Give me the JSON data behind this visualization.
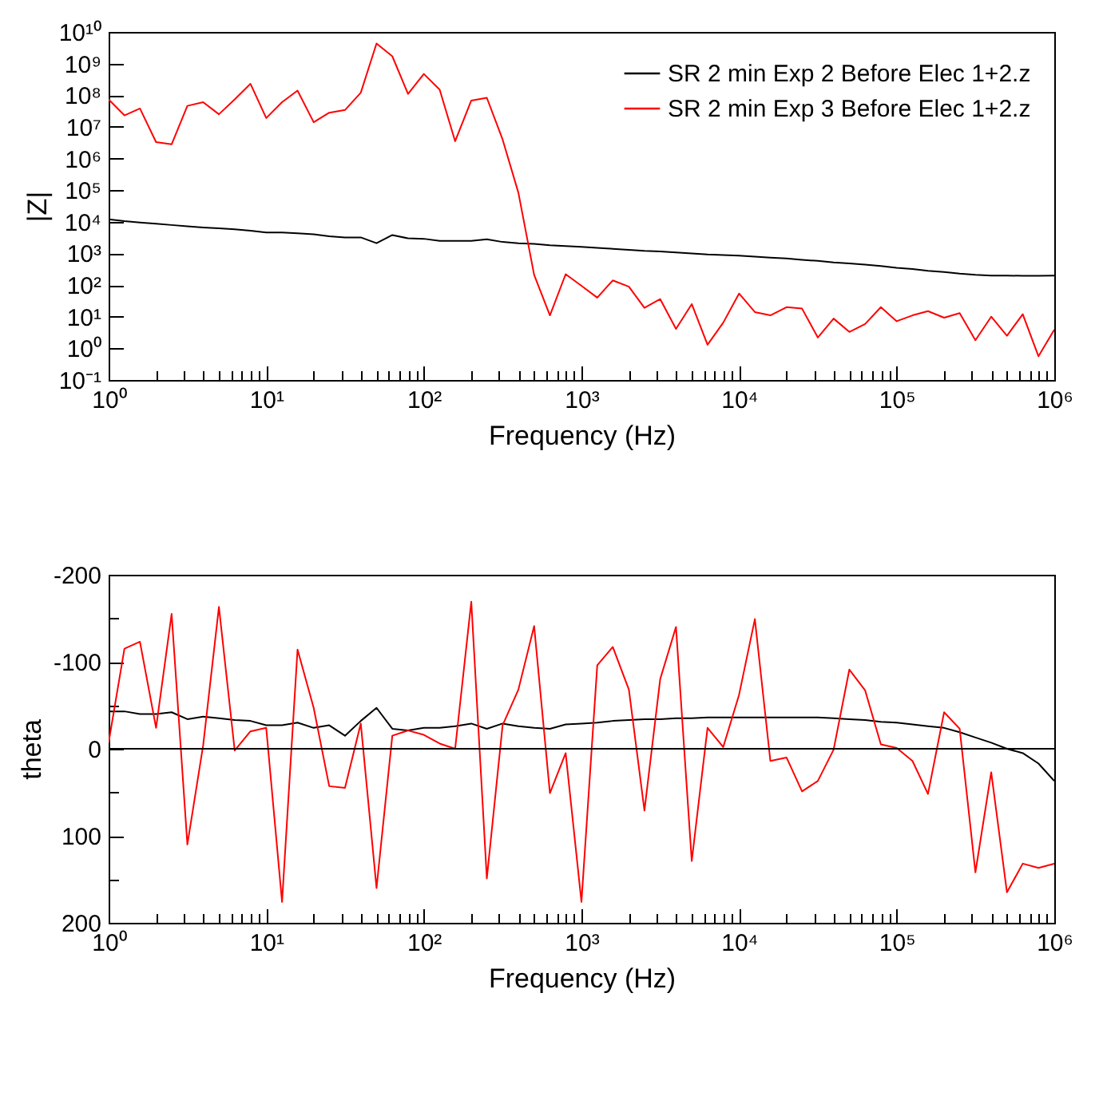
{
  "chart_data": [
    {
      "type": "line",
      "xlabel": "Frequency (Hz)",
      "ylabel": "|Z|",
      "log": "xy",
      "legend": "top right",
      "x": [
        1,
        1.26,
        1.58,
        2,
        2.51,
        3.16,
        3.98,
        5.01,
        6.31,
        7.94,
        10,
        12.6,
        15.8,
        20,
        25.1,
        31.6,
        39.8,
        50.1,
        63.1,
        79.4,
        100,
        126,
        158,
        200,
        251,
        316,
        398,
        501,
        631,
        794,
        1000,
        1260,
        1580,
        2000,
        2510,
        3160,
        3980,
        5010,
        6310,
        7940,
        10000,
        12600,
        15800,
        20000,
        25100,
        31600,
        39800,
        50100,
        63100,
        79400,
        100000,
        126000,
        158000,
        200000,
        251000,
        316000,
        398000,
        501000,
        631000,
        794000,
        1000000
      ],
      "xlim": [
        1,
        1000000
      ],
      "xticks": [
        {
          "value": 1,
          "label": "10⁰"
        },
        {
          "value": 2,
          "label": null
        },
        {
          "value": 3,
          "label": null
        },
        {
          "value": 4,
          "label": null
        },
        {
          "value": 5,
          "label": null
        },
        {
          "value": 6,
          "label": null
        },
        {
          "value": 7,
          "label": null
        },
        {
          "value": 8,
          "label": null
        },
        {
          "value": 9,
          "label": null
        },
        {
          "value": 10,
          "label": "10¹"
        },
        {
          "value": 20,
          "label": null
        },
        {
          "value": 30,
          "label": null
        },
        {
          "value": 40,
          "label": null
        },
        {
          "value": 50,
          "label": null
        },
        {
          "value": 60,
          "label": null
        },
        {
          "value": 70,
          "label": null
        },
        {
          "value": 80,
          "label": null
        },
        {
          "value": 90,
          "label": null
        },
        {
          "value": 100,
          "label": "10²"
        },
        {
          "value": 200,
          "label": null
        },
        {
          "value": 300,
          "label": null
        },
        {
          "value": 400,
          "label": null
        },
        {
          "value": 500,
          "label": null
        },
        {
          "value": 600,
          "label": null
        },
        {
          "value": 700,
          "label": null
        },
        {
          "value": 800,
          "label": null
        },
        {
          "value": 900,
          "label": null
        },
        {
          "value": 1000,
          "label": "10³"
        },
        {
          "value": 2000,
          "label": null
        },
        {
          "value": 3000,
          "label": null
        },
        {
          "value": 4000,
          "label": null
        },
        {
          "value": 5000,
          "label": null
        },
        {
          "value": 6000,
          "label": null
        },
        {
          "value": 7000,
          "label": null
        },
        {
          "value": 8000,
          "label": null
        },
        {
          "value": 9000,
          "label": null
        },
        {
          "value": 10000,
          "label": "10⁴"
        },
        {
          "value": 20000,
          "label": null
        },
        {
          "value": 30000,
          "label": null
        },
        {
          "value": 40000,
          "label": null
        },
        {
          "value": 50000,
          "label": null
        },
        {
          "value": 60000,
          "label": null
        },
        {
          "value": 70000,
          "label": null
        },
        {
          "value": 80000,
          "label": null
        },
        {
          "value": 90000,
          "label": null
        },
        {
          "value": 100000,
          "label": "10⁵"
        },
        {
          "value": 200000,
          "label": null
        },
        {
          "value": 300000,
          "label": null
        },
        {
          "value": 400000,
          "label": null
        },
        {
          "value": 500000,
          "label": null
        },
        {
          "value": 600000,
          "label": null
        },
        {
          "value": 700000,
          "label": null
        },
        {
          "value": 800000,
          "label": null
        },
        {
          "value": 900000,
          "label": null
        },
        {
          "value": 1000000,
          "label": "10⁶"
        }
      ],
      "ylim": [
        0.1,
        10000000000
      ],
      "yticks": [
        {
          "value": 0.1,
          "label": "10⁻¹"
        },
        {
          "value": 1,
          "label": "10⁰"
        },
        {
          "value": 10,
          "label": "10¹"
        },
        {
          "value": 100,
          "label": "10²"
        },
        {
          "value": 1000,
          "label": "10³"
        },
        {
          "value": 10000,
          "label": "10⁴"
        },
        {
          "value": 100000,
          "label": "10⁵"
        },
        {
          "value": 1000000,
          "label": "10⁶"
        },
        {
          "value": 10000000,
          "label": "10⁷"
        },
        {
          "value": 100000000,
          "label": "10⁸"
        },
        {
          "value": 1000000000,
          "label": "10⁹"
        },
        {
          "value": 10000000000,
          "label": "10¹⁰"
        }
      ],
      "series": [
        {
          "name": "SR 2 min Exp 2 Before Elec 1+2.z",
          "color": "#000000",
          "values": [
            12000,
            10500,
            9500,
            8700,
            7900,
            7200,
            6600,
            6200,
            5800,
            5200,
            4600,
            4600,
            4300,
            4000,
            3500,
            3200,
            3200,
            2100,
            3800,
            3000,
            2900,
            2500,
            2500,
            2500,
            2800,
            2300,
            2100,
            2000,
            1800,
            1700,
            1600,
            1500,
            1400,
            1300,
            1200,
            1150,
            1070,
            1000,
            930,
            890,
            850,
            790,
            740,
            690,
            630,
            580,
            520,
            480,
            440,
            400,
            350,
            320,
            280,
            260,
            230,
            210,
            200,
            200,
            195,
            195,
            200
          ]
        },
        {
          "name": "SR 2 min Exp 3 Before Elec 1+2.z",
          "color": "#ff0000",
          "values": [
            74000000,
            23000000,
            38000000,
            3300000,
            2800000,
            46000000,
            60000000,
            25000000,
            74000000,
            230000000,
            19000000,
            60000000,
            140000000,
            14000000,
            28000000,
            34000000,
            120000000,
            4300000000,
            1700000000,
            110000000,
            470000000,
            150000000,
            3500000,
            68000000,
            83000000,
            4000000,
            83000,
            210,
            11,
            220,
            95,
            40,
            140,
            89,
            19,
            36,
            4.1,
            25,
            1.3,
            6.5,
            54,
            14,
            11,
            20,
            18,
            2.2,
            8.7,
            3.3,
            5.9,
            20,
            7.2,
            11,
            15,
            9.3,
            13,
            1.8,
            10,
            2.5,
            12,
            0.56,
            3.9
          ]
        }
      ]
    },
    {
      "type": "line",
      "xlabel": "Frequency (Hz)",
      "ylabel": "theta",
      "log": "x",
      "x": [
        1,
        1.26,
        1.58,
        2,
        2.51,
        3.16,
        3.98,
        5.01,
        6.31,
        7.94,
        10,
        12.6,
        15.8,
        20,
        25.1,
        31.6,
        39.8,
        50.1,
        63.1,
        79.4,
        100,
        126,
        158,
        200,
        251,
        316,
        398,
        501,
        631,
        794,
        1000,
        1260,
        1580,
        2000,
        2510,
        3160,
        3980,
        5010,
        6310,
        7940,
        10000,
        12600,
        15800,
        20000,
        25100,
        31600,
        39800,
        50100,
        63100,
        79400,
        100000,
        126000,
        158000,
        200000,
        251000,
        316000,
        398000,
        501000,
        631000,
        794000,
        1000000
      ],
      "xlim": [
        1,
        1000000
      ],
      "xticks": [
        {
          "value": 1,
          "label": "10⁰"
        },
        {
          "value": 2,
          "label": null
        },
        {
          "value": 3,
          "label": null
        },
        {
          "value": 4,
          "label": null
        },
        {
          "value": 5,
          "label": null
        },
        {
          "value": 6,
          "label": null
        },
        {
          "value": 7,
          "label": null
        },
        {
          "value": 8,
          "label": null
        },
        {
          "value": 9,
          "label": null
        },
        {
          "value": 10,
          "label": "10¹"
        },
        {
          "value": 20,
          "label": null
        },
        {
          "value": 30,
          "label": null
        },
        {
          "value": 40,
          "label": null
        },
        {
          "value": 50,
          "label": null
        },
        {
          "value": 60,
          "label": null
        },
        {
          "value": 70,
          "label": null
        },
        {
          "value": 80,
          "label": null
        },
        {
          "value": 90,
          "label": null
        },
        {
          "value": 100,
          "label": "10²"
        },
        {
          "value": 200,
          "label": null
        },
        {
          "value": 300,
          "label": null
        },
        {
          "value": 400,
          "label": null
        },
        {
          "value": 500,
          "label": null
        },
        {
          "value": 600,
          "label": null
        },
        {
          "value": 700,
          "label": null
        },
        {
          "value": 800,
          "label": null
        },
        {
          "value": 900,
          "label": null
        },
        {
          "value": 1000,
          "label": "10³"
        },
        {
          "value": 2000,
          "label": null
        },
        {
          "value": 3000,
          "label": null
        },
        {
          "value": 4000,
          "label": null
        },
        {
          "value": 5000,
          "label": null
        },
        {
          "value": 6000,
          "label": null
        },
        {
          "value": 7000,
          "label": null
        },
        {
          "value": 8000,
          "label": null
        },
        {
          "value": 9000,
          "label": null
        },
        {
          "value": 10000,
          "label": "10⁴"
        },
        {
          "value": 20000,
          "label": null
        },
        {
          "value": 30000,
          "label": null
        },
        {
          "value": 40000,
          "label": null
        },
        {
          "value": 50000,
          "label": null
        },
        {
          "value": 60000,
          "label": null
        },
        {
          "value": 70000,
          "label": null
        },
        {
          "value": 80000,
          "label": null
        },
        {
          "value": 90000,
          "label": null
        },
        {
          "value": 100000,
          "label": "10⁵"
        },
        {
          "value": 200000,
          "label": null
        },
        {
          "value": 300000,
          "label": null
        },
        {
          "value": 400000,
          "label": null
        },
        {
          "value": 500000,
          "label": null
        },
        {
          "value": 600000,
          "label": null
        },
        {
          "value": 700000,
          "label": null
        },
        {
          "value": 800000,
          "label": null
        },
        {
          "value": 900000,
          "label": null
        },
        {
          "value": 1000000,
          "label": "10⁶"
        }
      ],
      "ylim": [
        200,
        -200
      ],
      "yticks": [
        -200,
        {
          "value": -150,
          "label": null
        },
        -100,
        {
          "value": -50,
          "label": null
        },
        0,
        {
          "value": 50,
          "label": null
        },
        100,
        {
          "value": 150,
          "label": null
        },
        200
      ],
      "ref_lines": [
        {
          "axis": "y",
          "value": 0,
          "color": "#000000"
        }
      ],
      "series": [
        {
          "color": "#000000",
          "values": [
            -43,
            -43,
            -40,
            -40,
            -42,
            -34,
            -37,
            -35,
            -33,
            -32,
            -27,
            -27,
            -30,
            -24,
            -27,
            -15,
            -32,
            -47,
            -23,
            -21,
            -24,
            -24,
            -26,
            -29,
            -23,
            -29,
            -26,
            -24,
            -23,
            -28,
            -29,
            -30,
            -32,
            -33,
            -34,
            -34,
            -35,
            -35,
            -36,
            -36,
            -36,
            -36,
            -36,
            -36,
            -36,
            -36,
            -35,
            -34,
            -33,
            -31,
            -30,
            -28,
            -26,
            -24,
            -19,
            -13,
            -7,
            0,
            5,
            17,
            37
          ]
        },
        {
          "color": "#ff0000",
          "values": [
            -7,
            -115,
            -123,
            -24,
            -155,
            110,
            -4,
            -163,
            2,
            -20,
            -24,
            176,
            -114,
            -47,
            43,
            45,
            -29,
            160,
            -15,
            -21,
            -16,
            -6,
            0,
            -169,
            149,
            -27,
            -68,
            -141,
            51,
            5,
            176,
            -96,
            -117,
            -68,
            71,
            -80,
            -140,
            129,
            -24,
            -2,
            -62,
            -149,
            14,
            10,
            49,
            37,
            1,
            -91,
            -67,
            -5,
            -1,
            14,
            52,
            -42,
            -23,
            142,
            27,
            165,
            132,
            137,
            132
          ]
        }
      ]
    }
  ]
}
